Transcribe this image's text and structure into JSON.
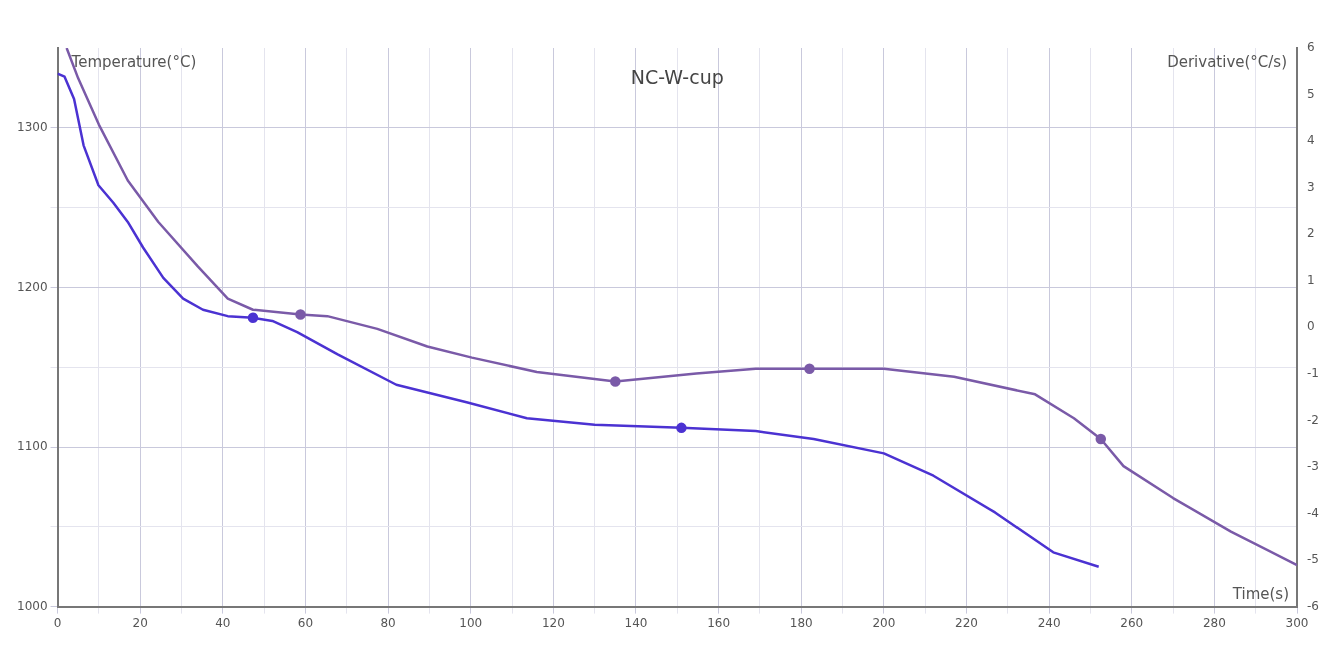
{
  "chart_data": {
    "type": "line",
    "title": "NC-W-cup",
    "xlabel": "Time(s)",
    "ylabel": "Temperature(°C)",
    "y2label": "Derivative(°C/s)",
    "xlim": [
      0,
      300
    ],
    "xticks": [
      0,
      {
        "value": 10,
        "label": null
      },
      20,
      {
        "value": 30,
        "label": null
      },
      40,
      {
        "value": 50,
        "label": null
      },
      60,
      {
        "value": 70,
        "label": null
      },
      80,
      {
        "value": 90,
        "label": null
      },
      100,
      {
        "value": 110,
        "label": null
      },
      120,
      {
        "value": 130,
        "label": null
      },
      140,
      {
        "value": 150,
        "label": null
      },
      160,
      {
        "value": 170,
        "label": null
      },
      180,
      {
        "value": 190,
        "label": null
      },
      200,
      {
        "value": 210,
        "label": null
      },
      220,
      {
        "value": 230,
        "label": null
      },
      240,
      {
        "value": 250,
        "label": null
      },
      260,
      {
        "value": 270,
        "label": null
      },
      280,
      {
        "value": 290,
        "label": null
      },
      300
    ],
    "ylim": [
      1000,
      1350
    ],
    "yticks": [
      1000,
      {
        "value": 1050,
        "label": null
      },
      1100,
      {
        "value": 1150,
        "label": null
      },
      1200,
      {
        "value": 1250,
        "label": null
      },
      1300
    ],
    "y2lim": [
      -6,
      6
    ],
    "y2ticks": [
      -6,
      -5,
      -4,
      -3,
      -2,
      -1,
      0,
      1,
      2,
      3,
      4,
      5,
      6
    ],
    "grid": true,
    "legend": false,
    "marker": "none",
    "line_style": "solid",
    "series": [
      {
        "color": "#4b32d2",
        "x": [
          0,
          1.7,
          4,
          6.3,
          9.9,
          13.5,
          17,
          20.7,
          25.6,
          30.4,
          35.2,
          41.2,
          47.3,
          52,
          58,
          67.8,
          82,
          99,
          113.6,
          130,
          151,
          169,
          183,
          200,
          212,
          226.9,
          241,
          252
        ],
        "values": [
          1334,
          1332,
          1318,
          1289,
          1264,
          1253,
          1241,
          1225,
          1206,
          1193,
          1186,
          1182,
          1181,
          1179,
          1172,
          1158,
          1139,
          1128,
          1118,
          1114,
          1112,
          1110,
          1105,
          1096,
          1082,
          1059,
          1034,
          1025
        ]
      },
      {
        "color": "#7a5aa8",
        "x": [
          2.2,
          5,
          10,
          17,
          24.4,
          34,
          41.2,
          47.3,
          58.8,
          65.3,
          77.4,
          89.5,
          100.3,
          116,
          135,
          154.6,
          169,
          182,
          200,
          217,
          236.6,
          246,
          252.5,
          258,
          270,
          284,
          300
        ],
        "values": [
          1350,
          1331,
          1302,
          1267,
          1241,
          1213,
          1193,
          1186,
          1183,
          1182,
          1174,
          1163,
          1156,
          1147,
          1141,
          1146,
          1149,
          1149,
          1149,
          1144,
          1133,
          1118,
          1105,
          1088,
          1068,
          1047,
          1026
        ]
      },
      {
        "type": "scatter",
        "marker": "circle",
        "color": "#4b32d2",
        "x": [
          47.3,
          151
        ],
        "values": [
          1181,
          1112
        ]
      },
      {
        "type": "scatter",
        "marker": "circle",
        "color": "#7a5aa8",
        "x": [
          58.8,
          135,
          182,
          252.5
        ],
        "values": [
          1183,
          1141,
          1149,
          1105
        ]
      }
    ]
  }
}
